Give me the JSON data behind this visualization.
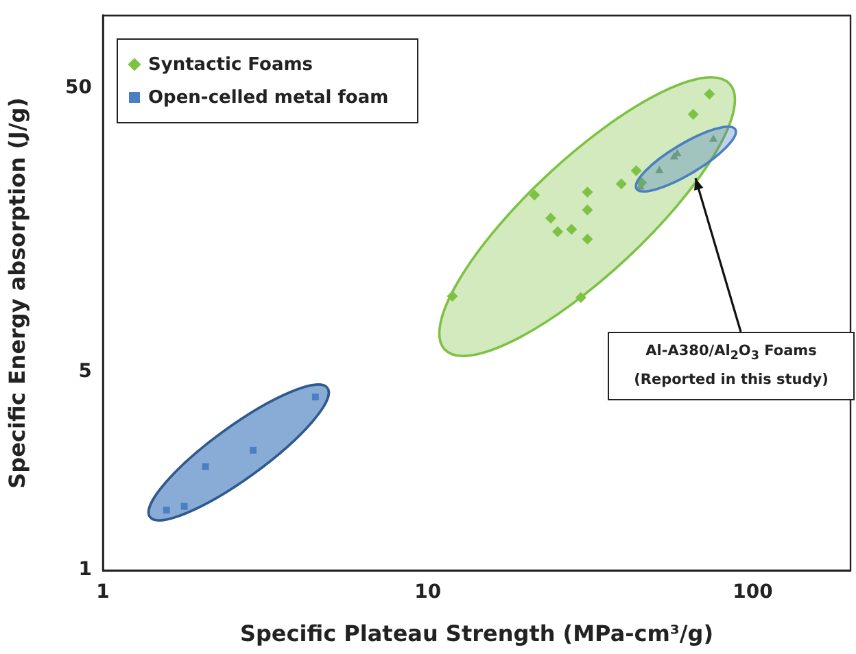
{
  "chart_data": {
    "type": "scatter",
    "xlabel": "Specific Plateau Strength (MPa-cm³/g)",
    "ylabel": "Specific Energy absorption (J/g)",
    "log": "xy",
    "xlim": [
      1,
      200
    ],
    "xticks": [
      1,
      10,
      100
    ],
    "ylim": [
      1,
      90
    ],
    "yticks": [
      1,
      5,
      50
    ],
    "grid": false,
    "legend": "top left",
    "series": [
      {
        "name": "Syntactic Foams",
        "color": "#7dc243",
        "marker": "diamond",
        "x": [
          11.9,
          21.3,
          29.6,
          23.9,
          25.1,
          27.7,
          31.0,
          31.0,
          31.0,
          39.4,
          43.8,
          45.5,
          65.6,
          73.6
        ],
        "values": [
          9.25,
          21.0,
          9.15,
          17.4,
          15.6,
          15.9,
          21.5,
          18.6,
          14.7,
          23.0,
          25.6,
          23.2,
          40.4,
          47.6
        ]
      },
      {
        "name": "Open-celled metal foam",
        "color": "#4a7fc1",
        "marker": "square",
        "x": [
          1.57,
          1.78,
          2.07,
          2.9,
          4.51
        ],
        "values": [
          1.63,
          1.68,
          2.32,
          2.65,
          4.08
        ]
      },
      {
        "color": "#7f9a78",
        "marker": "triangle",
        "x": [
          45.1,
          51.6,
          57.3,
          58.6,
          75.7
        ],
        "values": [
          22.4,
          25.6,
          28.6,
          29.3,
          33.0
        ]
      }
    ],
    "annotations": [
      "Al-A380/Al$_{2}$O$_{3}$ Foams\n(Reported in this study)"
    ]
  }
}
